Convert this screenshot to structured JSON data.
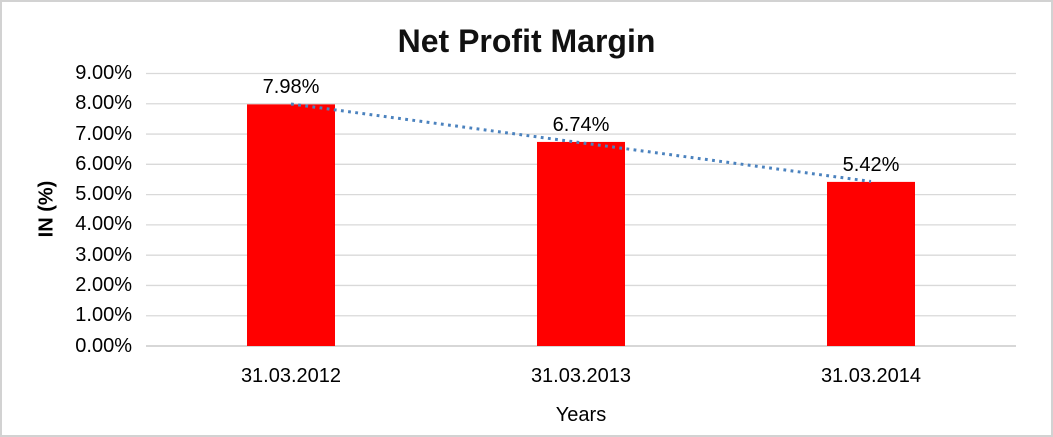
{
  "chart_data": {
    "type": "bar",
    "title": "Net Profit Margin",
    "xlabel": "Years",
    "ylabel": "IN (%)",
    "categories": [
      "31.03.2012",
      "31.03.2013",
      "31.03.2014"
    ],
    "values": [
      7.98,
      6.74,
      5.42
    ],
    "value_labels": [
      "7.98%",
      "6.74%",
      "5.42%"
    ],
    "ylim": [
      0,
      9
    ],
    "yticks": [
      {
        "value": 0,
        "label": "0.00%"
      },
      {
        "value": 1,
        "label": "1.00%"
      },
      {
        "value": 2,
        "label": "2.00%"
      },
      {
        "value": 3,
        "label": "3.00%"
      },
      {
        "value": 4,
        "label": "4.00%"
      },
      {
        "value": 5,
        "label": "5.00%"
      },
      {
        "value": 6,
        "label": "6.00%"
      },
      {
        "value": 7,
        "label": "7.00%"
      },
      {
        "value": 8,
        "label": "8.00%"
      },
      {
        "value": 9,
        "label": "9.00%"
      }
    ],
    "grid": "horizontal",
    "legend": "none",
    "trendline": {
      "type": "linear",
      "style": "dotted"
    },
    "colors": {
      "bar": "#FF0000",
      "gridline": "#D9D9D9",
      "axis_line": "#BFBFBF",
      "trendline": "#4B82BE",
      "text": "#000000"
    }
  }
}
